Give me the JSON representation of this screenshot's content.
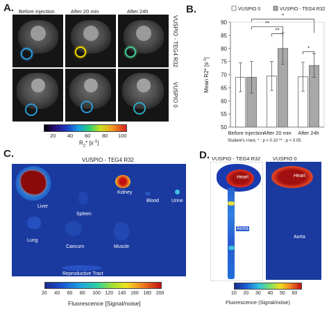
{
  "panel_a": {
    "label": "A.",
    "col_titles": [
      "Before injection",
      "After 20 min",
      "After 24h"
    ],
    "row_labels": [
      "VUSPIO - TEG4 R32",
      "VUSPIO 0"
    ],
    "colorbar": {
      "ticks": [
        "20",
        "40",
        "60",
        "80",
        "100"
      ],
      "label": "R",
      "label_sub": "2",
      "label_rest": "* [s",
      "label_sup": "-1",
      "label_end": "]"
    }
  },
  "panel_b": {
    "label": "B.",
    "footnote": "Student's t-test, * : p < 0.10  ** : p < 0.05",
    "sig_marks": [
      "**",
      "*",
      "**",
      "*"
    ]
  },
  "chart_data": {
    "type": "bar",
    "categories": [
      "Before injection",
      "After 20 min",
      "After 24h"
    ],
    "series": [
      {
        "name": "VUSPIO 0",
        "values": [
          69,
          69.5,
          69.2
        ],
        "errors": [
          5.5,
          5.5,
          5.5
        ],
        "color": "#ffffff"
      },
      {
        "name": "VUSPIO - TEG4 R32",
        "values": [
          69,
          80,
          73.5
        ],
        "errors": [
          6,
          6,
          4.5
        ],
        "color": "#a8a8a8"
      }
    ],
    "ylabel": "Mean R2* [s",
    "ylabel_sup": "-1",
    "ylabel_end": "]",
    "ylim": [
      50,
      90
    ],
    "yticks": [
      50,
      55,
      60,
      65,
      70,
      75,
      80,
      85,
      90
    ],
    "legend_position": "top"
  },
  "panel_c": {
    "label": "C.",
    "title": "VUSPIO - TEG4 R32",
    "organs": [
      "Liver",
      "Spleen",
      "Kidney",
      "Blood",
      "Urine",
      "Lung",
      "Caecum",
      "Muscle",
      "Reproductive Tract"
    ],
    "colorbar_ticks": [
      "20",
      "40",
      "60",
      "80",
      "100",
      "120",
      "140",
      "160",
      "180",
      "200"
    ],
    "colorbar_label": "Fluorescence [Signal/noise]"
  },
  "panel_d": {
    "label": "D.",
    "titles": [
      "VUSPIO - TEG4 R32",
      "VUSPIO 0"
    ],
    "organs": [
      "Heart",
      "Aorta",
      "Heart",
      "Aorta"
    ],
    "colorbar_ticks": [
      "10",
      "20",
      "30",
      "40",
      "50",
      "60"
    ],
    "colorbar_label": "Fluorescence (Signal/noise)"
  }
}
